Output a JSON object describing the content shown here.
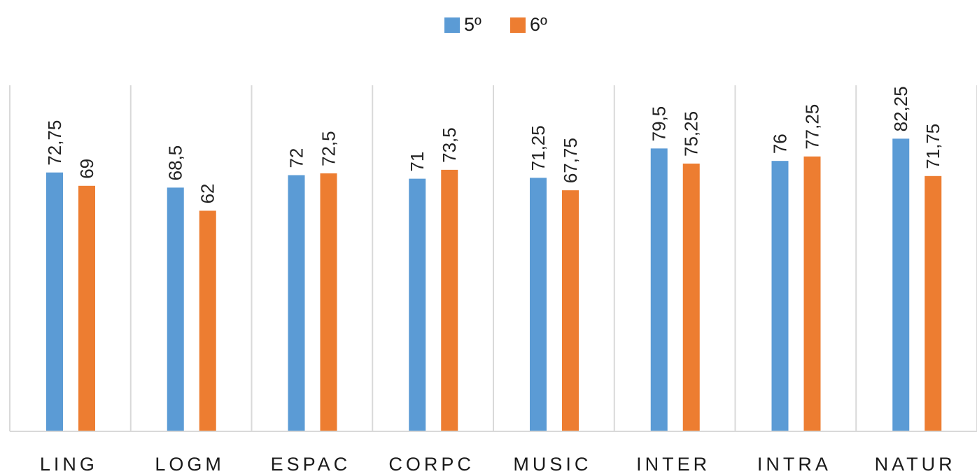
{
  "chart_data": {
    "type": "bar",
    "categories": [
      "LING",
      "LOGM",
      "ESPAC",
      "CORPC",
      "MUSIC",
      "INTER",
      "INTRA",
      "NATUR"
    ],
    "series": [
      {
        "name": "5º",
        "color": "#5B9BD5",
        "values": [
          72.75,
          68.5,
          72,
          71,
          71.25,
          79.5,
          76,
          82.25
        ],
        "labels": [
          "72,75",
          "68,5",
          "72",
          "71",
          "71,25",
          "79,5",
          "76",
          "82,25"
        ]
      },
      {
        "name": "6º",
        "color": "#ED7D31",
        "values": [
          69,
          62,
          72.5,
          73.5,
          67.75,
          75.25,
          77.25,
          71.75
        ],
        "labels": [
          "69",
          "62",
          "72,5",
          "73,5",
          "67,75",
          "75,25",
          "77,25",
          "71,75"
        ]
      }
    ],
    "ylim": [
      0,
      89
    ],
    "grid": "vertical-separators",
    "legend_position": "top-center",
    "data_labels": "rotated-vertical"
  }
}
